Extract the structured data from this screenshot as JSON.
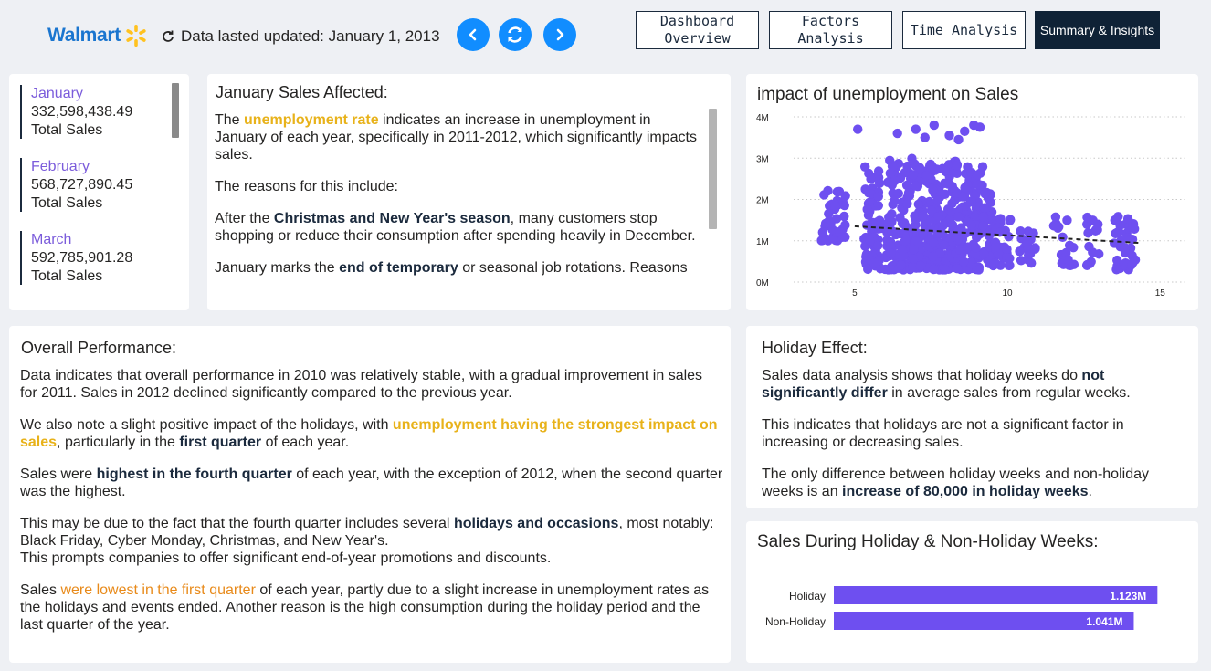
{
  "header": {
    "logo_text": "Walmart",
    "updated_text": "Data lasted updated: January 1, 2013",
    "tabs": [
      {
        "label_line1": "Dashboard",
        "label_line2": "Overview"
      },
      {
        "label": "Factors Analysis"
      },
      {
        "label": "Time Analysis"
      },
      {
        "label": "Summary & Insights"
      }
    ]
  },
  "months": [
    {
      "name": "January",
      "value": "332,598,438.49",
      "label": "Total Sales"
    },
    {
      "name": "February",
      "value": "568,727,890.45",
      "label": "Total Sales"
    },
    {
      "name": "March",
      "value": "592,785,901.28",
      "label": "Total Sales"
    }
  ],
  "january_card": {
    "title": "January Sales Affected:",
    "p1_pre": "The ",
    "p1_hl": "unemployment rate",
    "p1_post": " indicates an increase in unemployment in January of each year, specifically in 2011-2012, which significantly impacts sales.",
    "p2": "The reasons for this include:",
    "p3_pre": "After the ",
    "p3_b": "Christmas and New Year's season",
    "p3_post": ", many customers stop shopping or reduce their consumption after spending heavily in December.",
    "p4_pre": "January marks the ",
    "p4_b": "end of temporary",
    "p4_post": " or seasonal job rotations. Reasons"
  },
  "overall_card": {
    "title": "Overall Performance:",
    "p1": "Data indicates that overall performance in 2010 was relatively stable, with a gradual improvement in sales for 2011. Sales in 2012 declined significantly compared to the previous year.",
    "p2_pre": "We also note a slight positive impact of the holidays, with ",
    "p2_hl": "unemployment having the strongest impact on sales",
    "p2_mid": ", particularly in the ",
    "p2_b": "first quarter",
    "p2_post": " of each year.",
    "p3_pre": "Sales were ",
    "p3_b": "highest in the fourth quarter",
    "p3_post": " of each year, with the exception of 2012, when the second quarter was the highest.",
    "p4_pre": "This may be due to the fact that the fourth quarter includes several ",
    "p4_b": "holidays and occasions",
    "p4_post": ", most notably:",
    "p4_line2": "Black Friday, Cyber Monday, Christmas, and New Year's.",
    "p4_line3": "This prompts companies to offer significant end-of-year promotions and discounts.",
    "p5_pre": "Sales ",
    "p5_hl": "were lowest in the first quarter",
    "p5_post": " of each year, partly due to a slight increase in unemployment rates as the holidays and events ended. Another reason is the high consumption during the holiday period and the last quarter of the year."
  },
  "holiday_card": {
    "title": "Holiday Effect:",
    "p1_pre": "Sales data analysis shows that holiday weeks do ",
    "p1_b": "not significantly differ",
    "p1_post": " in average sales from regular weeks.",
    "p2": "This indicates that holidays are not a significant factor in increasing or decreasing sales.",
    "p3_pre": "The only difference between holiday weeks and non-holiday weeks is an ",
    "p3_b": "increase of 80,000 in holiday weeks",
    "p3_post": "."
  },
  "colors": {
    "accent": "#6e4ff0",
    "nav_blue": "#118dff",
    "highlight_yellow": "#e8b21a",
    "highlight_orange": "#e88a1a",
    "dark_navy": "#0f2236"
  },
  "chart_data": [
    {
      "type": "scatter",
      "title": "impact of unemployment on Sales",
      "xlabel": "",
      "ylabel": "",
      "xticks": [
        "5",
        "10",
        "15"
      ],
      "yticks": [
        "0M",
        "1M",
        "2M",
        "3M",
        "4M"
      ],
      "xlim": [
        3,
        15.8
      ],
      "ylim": [
        0,
        4000000
      ],
      "grid": true,
      "trendline": {
        "x": [
          5,
          14.3
        ],
        "y": [
          1350000,
          950000
        ]
      },
      "clusters": [
        {
          "x": [
            3.9,
            4.7
          ],
          "y": [
            1000000,
            2300000
          ],
          "n": 40
        },
        {
          "x": [
            5.3,
            5.9
          ],
          "y": [
            300000,
            2900000
          ],
          "n": 60
        },
        {
          "x": [
            6.0,
            6.9
          ],
          "y": [
            300000,
            3000000
          ],
          "n": 110
        },
        {
          "x": [
            6.9,
            8.3
          ],
          "y": [
            300000,
            3000000
          ],
          "n": 220
        },
        {
          "x": [
            8.3,
            9.2
          ],
          "y": [
            300000,
            2900000
          ],
          "n": 120
        },
        {
          "x": [
            9.2,
            9.6
          ],
          "y": [
            400000,
            2200000
          ],
          "n": 40
        },
        {
          "x": [
            9.6,
            10.1
          ],
          "y": [
            400000,
            1600000
          ],
          "n": 30
        },
        {
          "x": [
            10.4,
            11.0
          ],
          "y": [
            400000,
            1300000
          ],
          "n": 20
        },
        {
          "x": [
            11.5,
            12.2
          ],
          "y": [
            400000,
            1600000
          ],
          "n": 18
        },
        {
          "x": [
            12.6,
            13.0
          ],
          "y": [
            400000,
            1600000
          ],
          "n": 15
        },
        {
          "x": [
            13.5,
            14.2
          ],
          "y": [
            300000,
            1700000
          ],
          "n": 35
        }
      ],
      "outliers": [
        {
          "x": 5.1,
          "y": 3700000
        },
        {
          "x": 6.4,
          "y": 3600000
        },
        {
          "x": 7.0,
          "y": 3700000
        },
        {
          "x": 7.6,
          "y": 3800000
        },
        {
          "x": 8.1,
          "y": 3550000
        },
        {
          "x": 8.6,
          "y": 3650000
        },
        {
          "x": 8.9,
          "y": 3800000
        },
        {
          "x": 9.1,
          "y": 3750000
        },
        {
          "x": 7.3,
          "y": 3500000
        },
        {
          "x": 8.4,
          "y": 3450000
        }
      ],
      "color": "#6e4ff0"
    },
    {
      "type": "bar",
      "orientation": "horizontal",
      "title": "Sales During Holiday & Non-Holiday Weeks:",
      "categories": [
        "Holiday",
        "Non-Holiday"
      ],
      "values": [
        1123000,
        1041000
      ],
      "data_labels": [
        "1.123M",
        "1.041M"
      ],
      "xlim": [
        0,
        1160000
      ],
      "color": "#6e4ff0"
    }
  ]
}
